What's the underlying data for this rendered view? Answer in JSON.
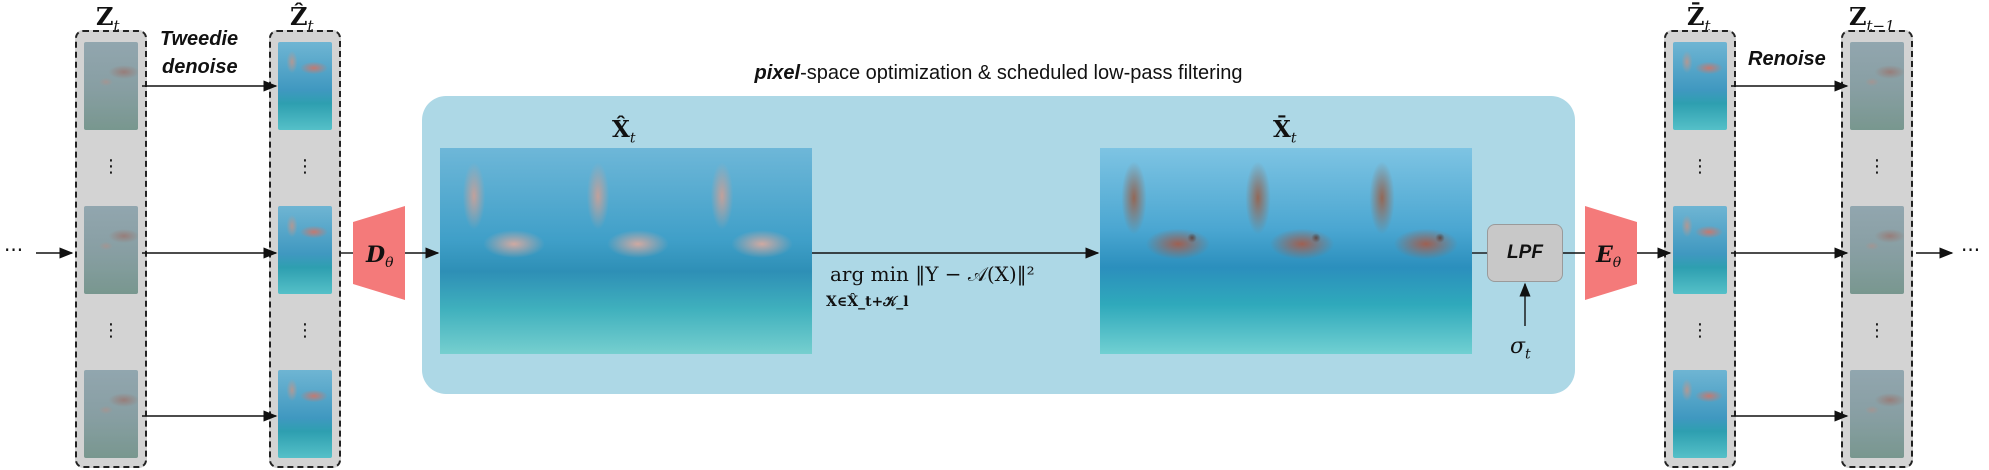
{
  "labels": {
    "z_t": "Z_t",
    "z_hat_t": "Ẑ_t",
    "z_bar_t": "Z̄_t",
    "z_t_minus_1": "Z_{t−1}",
    "tweedie_line1": "Tweedie",
    "tweedie_line2": "denoise",
    "renoise": "Renoise",
    "x_hat_t": "X̂_t",
    "x_bar_t": "X̄_t",
    "decoder": "D_θ",
    "encoder": "E_θ",
    "lpf": "LPF",
    "sigma": "σ_t",
    "vdots": "⋮",
    "hdots": "···"
  },
  "panel": {
    "title_bold": "pixel",
    "title_rest": "-space optimization & scheduled low-pass filtering"
  },
  "equation": {
    "main": "arg min ‖Y − 𝒜(X)‖²",
    "subscript": "X∈X̂_t+𝒦_l"
  },
  "colors": {
    "panel": "#add8e6",
    "column": "#d3d3d3",
    "trapezoid": "#f47a7a",
    "lpf_box": "#c8c8c8"
  }
}
